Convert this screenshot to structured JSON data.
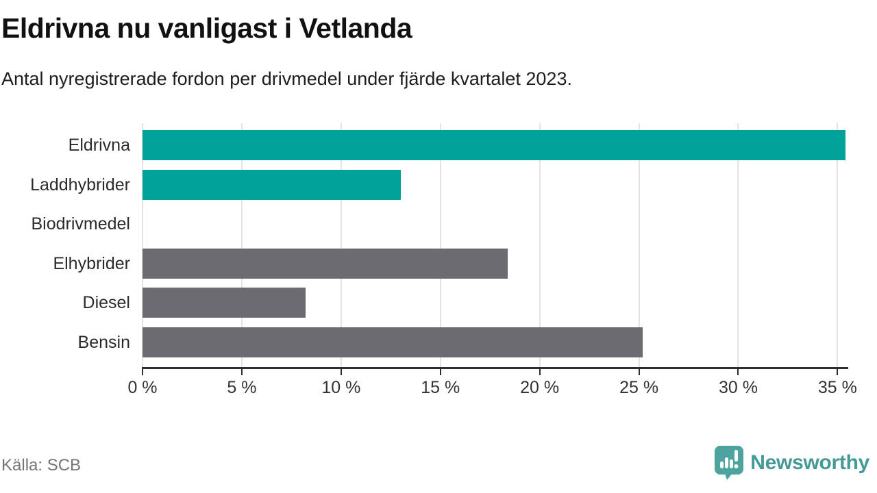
{
  "header": {
    "title": "Eldrivna nu vanligast i Vetlanda",
    "subtitle": "Antal nyregistrerade fordon per drivmedel under fjärde kvartalet 2023."
  },
  "chart_data": {
    "type": "bar",
    "orientation": "horizontal",
    "title": "Eldrivna nu vanligast i Vetlanda",
    "subtitle": "Antal nyregistrerade fordon per drivmedel under fjärde kvartalet 2023.",
    "categories": [
      "Eldrivna",
      "Laddhybrider",
      "Biodrivmedel",
      "Elhybrider",
      "Diesel",
      "Bensin"
    ],
    "values": [
      35.4,
      13.0,
      0,
      18.4,
      8.2,
      25.2
    ],
    "unit": "%",
    "bar_colors": [
      "#00a29a",
      "#00a29a",
      "#6b6b70",
      "#6b6b70",
      "#6b6b70",
      "#6b6b70"
    ],
    "xlim": [
      0,
      35.4
    ],
    "x_ticks": [
      0,
      5,
      10,
      15,
      20,
      25,
      30,
      35
    ],
    "x_tick_labels": [
      "0 %",
      "5 %",
      "10 %",
      "15 %",
      "20 %",
      "25 %",
      "30 %",
      "35 %"
    ],
    "grid": true,
    "legend": "none",
    "xlabel": "",
    "ylabel": ""
  },
  "colors": {
    "accent_teal": "#00a29a",
    "neutral_gray": "#6b6b70",
    "gridline": "#e3e3e3",
    "axis": "#2e2e2e",
    "brand_teal": "#459a95"
  },
  "footer": {
    "source": "Källa: SCB",
    "brand": "Newsworthy"
  },
  "icons": {
    "logo_icon": "newsworthy-speech-bubble-bar-chart-icon"
  }
}
